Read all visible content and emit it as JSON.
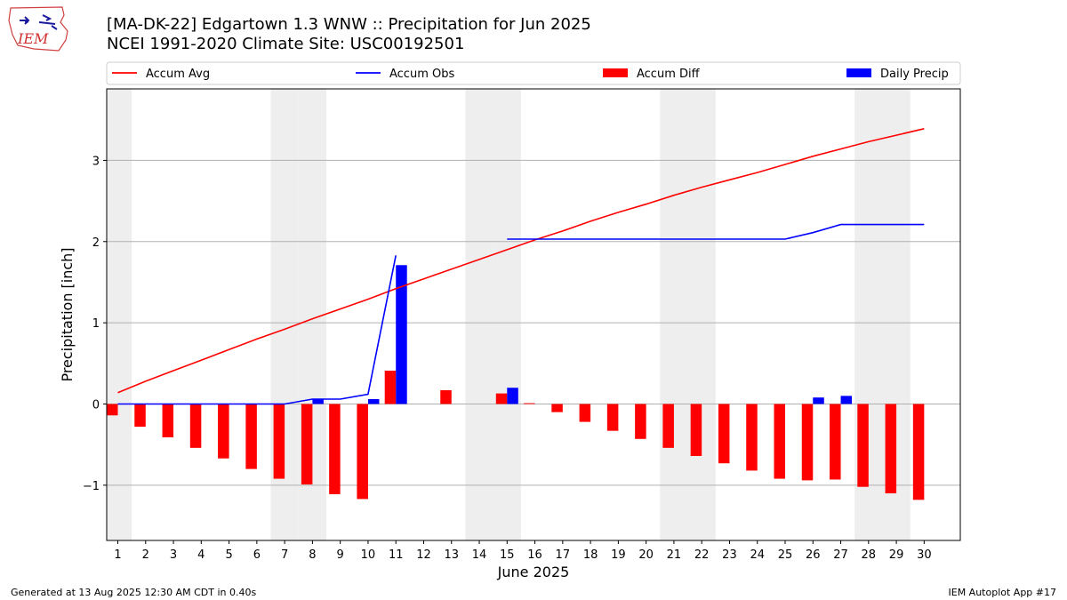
{
  "header": {
    "title_line1": "[MA-DK-22] Edgartown 1.3 WNW :: Precipitation for Jun 2025",
    "title_line2": "NCEI 1991-2020 Climate Site: USC00192501",
    "logo_text": "IEM"
  },
  "footer": {
    "left": "Generated at 13 Aug 2025 12:30 AM CDT in 0.40s",
    "right": "IEM Autoplot App #17"
  },
  "chart_data": {
    "type": "bar",
    "xlabel": "June 2025",
    "ylabel": "Precipitation [inch]",
    "ylim": [
      -1.68,
      3.88
    ],
    "yticks": [
      -1,
      0,
      1,
      2,
      3
    ],
    "ytick_labels": [
      "−1",
      "0",
      "1",
      "2",
      "3"
    ],
    "grid": true,
    "legend_placement": "top",
    "categories": [
      "1",
      "2",
      "3",
      "4",
      "5",
      "6",
      "7",
      "8",
      "9",
      "10",
      "11",
      "12",
      "13",
      "14",
      "15",
      "16",
      "17",
      "18",
      "19",
      "20",
      "21",
      "22",
      "23",
      "24",
      "25",
      "26",
      "27",
      "28",
      "29",
      "30"
    ],
    "weekend_days": [
      1,
      7,
      8,
      14,
      15,
      21,
      22,
      28,
      29
    ],
    "series": [
      {
        "name": "Accum Avg",
        "kind": "line",
        "color": "#ff0000",
        "values": [
          0.14,
          0.28,
          0.41,
          0.54,
          0.67,
          0.8,
          0.92,
          1.05,
          1.17,
          1.29,
          1.42,
          1.54,
          1.66,
          1.78,
          1.9,
          2.02,
          2.13,
          2.25,
          2.36,
          2.46,
          2.57,
          2.67,
          2.76,
          2.85,
          2.95,
          3.05,
          3.14,
          3.23,
          3.31,
          3.39
        ]
      },
      {
        "name": "Accum Obs",
        "kind": "line",
        "color": "#0000ff",
        "values": [
          0.0,
          0.0,
          0.0,
          0.0,
          0.0,
          0.0,
          0.0,
          0.06,
          0.06,
          0.12,
          1.83,
          null,
          null,
          null,
          2.03,
          2.03,
          2.03,
          2.03,
          2.03,
          2.03,
          2.03,
          2.03,
          2.03,
          2.03,
          2.03,
          2.11,
          2.21,
          2.21,
          2.21,
          2.21
        ]
      },
      {
        "name": "Accum Diff",
        "kind": "bar",
        "color": "#ff0000",
        "values": [
          -0.14,
          -0.28,
          -0.41,
          -0.54,
          -0.67,
          -0.8,
          -0.92,
          -0.99,
          -1.11,
          -1.17,
          0.41,
          0.0,
          0.17,
          0.0,
          0.13,
          0.01,
          -0.1,
          -0.22,
          -0.33,
          -0.43,
          -0.54,
          -0.64,
          -0.73,
          -0.82,
          -0.92,
          -0.94,
          -0.93,
          -1.02,
          -1.1,
          -1.18
        ]
      },
      {
        "name": "Daily Precip",
        "kind": "bar",
        "color": "#0000ff",
        "values": [
          0,
          0,
          0,
          0,
          0,
          0,
          0,
          0.06,
          0,
          0.06,
          1.71,
          0,
          0,
          0,
          0.2,
          0,
          0,
          0,
          0,
          0,
          0,
          0,
          0,
          0,
          0,
          0.08,
          0.1,
          0,
          0,
          0
        ]
      }
    ]
  }
}
